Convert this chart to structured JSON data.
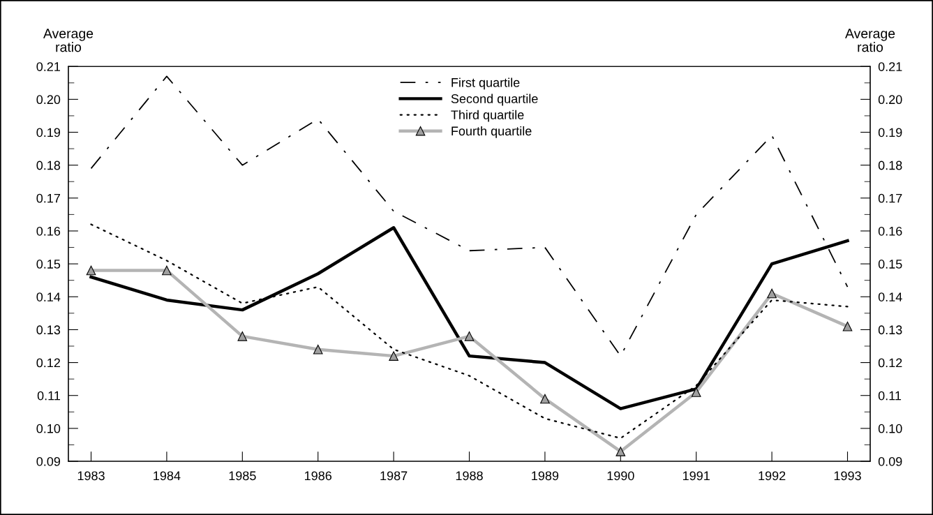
{
  "chart_data": {
    "type": "line",
    "ylabel": "Average\nratio",
    "y2label": "Average\nratio",
    "x": [
      1983,
      1984,
      1985,
      1986,
      1987,
      1988,
      1989,
      1990,
      1991,
      1992,
      1993
    ],
    "xlim": [
      1982.7,
      1993.3
    ],
    "xticks": [
      1983,
      1984,
      1985,
      1986,
      1987,
      1988,
      1989,
      1990,
      1991,
      1992,
      1993
    ],
    "ylim": [
      0.09,
      0.21
    ],
    "yticks": [
      {
        "value": 0.09,
        "label": "0.09"
      },
      {
        "value": 0.1,
        "label": "0.10"
      },
      {
        "value": 0.11,
        "label": "0.11"
      },
      {
        "value": 0.12,
        "label": "0.12"
      },
      {
        "value": 0.13,
        "label": "0.13"
      },
      {
        "value": 0.14,
        "label": "0.14"
      },
      {
        "value": 0.15,
        "label": "0.15"
      },
      {
        "value": 0.16,
        "label": "0.16"
      },
      {
        "value": 0.17,
        "label": "0.17"
      },
      {
        "value": 0.18,
        "label": "0.18"
      },
      {
        "value": 0.19,
        "label": "0.19"
      },
      {
        "value": 0.2,
        "label": "0.20"
      },
      {
        "value": 0.21,
        "label": "0.21"
      }
    ],
    "y2lim": [
      0.09,
      0.21
    ],
    "y2ticks": [
      {
        "value": 0.09,
        "label": "0.09"
      },
      {
        "value": 0.1,
        "label": "0.10"
      },
      {
        "value": 0.11,
        "label": "0.11"
      },
      {
        "value": 0.12,
        "label": "0.12"
      },
      {
        "value": 0.13,
        "label": "0.13"
      },
      {
        "value": 0.14,
        "label": "0.14"
      },
      {
        "value": 0.15,
        "label": "0.15"
      },
      {
        "value": 0.16,
        "label": "0.16"
      },
      {
        "value": 0.17,
        "label": "0.17"
      },
      {
        "value": 0.18,
        "label": "0.18"
      },
      {
        "value": 0.19,
        "label": "0.19"
      },
      {
        "value": 0.2,
        "label": "0.20"
      },
      {
        "value": 0.21,
        "label": "0.21"
      }
    ],
    "grid": false,
    "legend": "top",
    "series": [
      {
        "name": "First quartile",
        "color": "#000000",
        "line_style": "dashdot",
        "values": [
          0.179,
          0.207,
          0.18,
          0.194,
          0.166,
          0.154,
          0.155,
          0.122,
          0.165,
          0.189,
          0.143
        ]
      },
      {
        "name": "Second quartile",
        "color": "#000000",
        "line_style": "solid",
        "values": [
          0.146,
          0.139,
          0.136,
          0.147,
          0.161,
          0.122,
          0.12,
          0.106,
          0.112,
          0.15,
          0.157
        ]
      },
      {
        "name": "Third quartile",
        "color": "#000000",
        "line_style": "dotted",
        "values": [
          0.162,
          0.151,
          0.138,
          0.143,
          0.124,
          0.116,
          0.103,
          0.097,
          0.113,
          0.139,
          0.137
        ]
      },
      {
        "name": "Fourth quartile",
        "color": "#b4b4b4",
        "line_style": "solid",
        "marker": "triangle",
        "values": [
          0.148,
          0.148,
          0.128,
          0.124,
          0.122,
          0.128,
          0.109,
          0.093,
          0.111,
          0.141,
          0.131
        ]
      }
    ]
  }
}
